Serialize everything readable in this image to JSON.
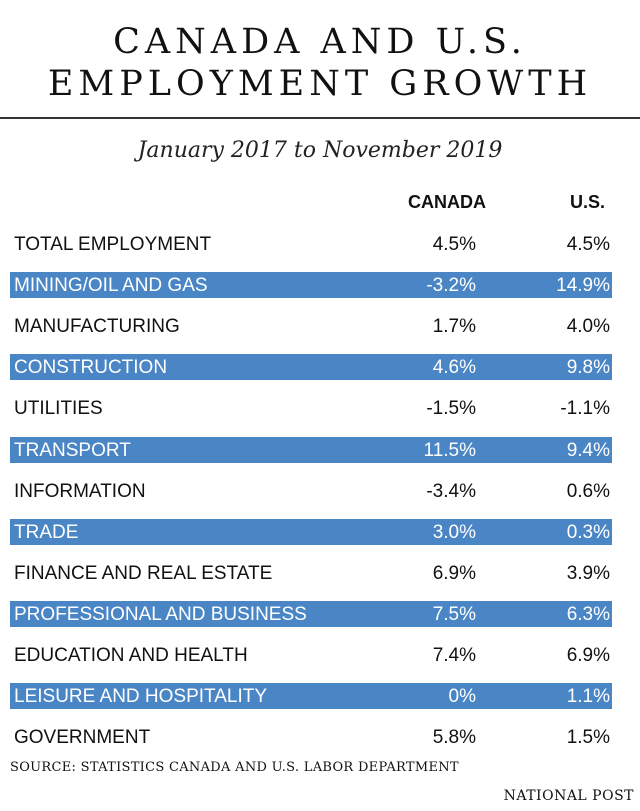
{
  "title_line1": "CANADA AND U.S.",
  "title_line2": "EMPLOYMENT GROWTH",
  "subtitle": "January 2017 to November 2019",
  "source": "SOURCE: STATISTICS CANADA AND U.S. LABOR DEPARTMENT",
  "brand": "NATIONAL POST",
  "colors": {
    "highlight": "#4a86c5",
    "text": "#111111"
  },
  "chart_data": {
    "type": "table",
    "title": "CANADA AND U.S. EMPLOYMENT GROWTH",
    "subtitle": "January 2017 to November 2019",
    "columns": [
      "CANADA",
      "U.S."
    ],
    "rows": [
      {
        "label": "TOTAL EMPLOYMENT",
        "canada": "4.5%",
        "us": "4.5%"
      },
      {
        "label": "MINING/OIL AND GAS",
        "canada": "-3.2%",
        "us": "14.9%"
      },
      {
        "label": "MANUFACTURING",
        "canada": "1.7%",
        "us": "4.0%"
      },
      {
        "label": "CONSTRUCTION",
        "canada": "4.6%",
        "us": "9.8%"
      },
      {
        "label": "UTILITIES",
        "canada": "-1.5%",
        "us": "-1.1%"
      },
      {
        "label": "TRANSPORT",
        "canada": "11.5%",
        "us": "9.4%"
      },
      {
        "label": "INFORMATION",
        "canada": "-3.4%",
        "us": "0.6%"
      },
      {
        "label": "TRADE",
        "canada": "3.0%",
        "us": "0.3%"
      },
      {
        "label": "FINANCE AND REAL ESTATE",
        "canada": "6.9%",
        "us": "3.9%"
      },
      {
        "label": "PROFESSIONAL AND BUSINESS",
        "canada": "7.5%",
        "us": "6.3%"
      },
      {
        "label": "EDUCATION AND HEALTH",
        "canada": "7.4%",
        "us": "6.9%"
      },
      {
        "label": "LEISURE AND HOSPITALITY",
        "canada": "0%",
        "us": "1.1%"
      },
      {
        "label": "GOVERNMENT",
        "canada": "5.8%",
        "us": "1.5%"
      }
    ]
  }
}
